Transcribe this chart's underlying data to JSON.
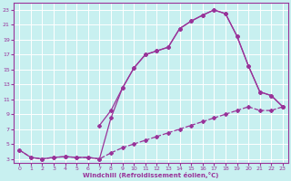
{
  "xlabel": "Windchill (Refroidissement éolien,°C)",
  "bg_color": "#c8f0f0",
  "line_color": "#993399",
  "grid_color": "#ffffff",
  "xlim": [
    -0.5,
    23.5
  ],
  "ylim": [
    2.5,
    24
  ],
  "xticks": [
    0,
    1,
    2,
    3,
    4,
    5,
    6,
    7,
    8,
    9,
    10,
    11,
    12,
    13,
    14,
    15,
    16,
    17,
    18,
    19,
    20,
    21,
    22,
    23
  ],
  "yticks": [
    3,
    5,
    7,
    9,
    11,
    13,
    15,
    17,
    19,
    21,
    23
  ],
  "line1_x": [
    0,
    1,
    2,
    3,
    4,
    5,
    6,
    7,
    8,
    9,
    10,
    11,
    12,
    13,
    14,
    15,
    16,
    17,
    18,
    19,
    20,
    21,
    22,
    23
  ],
  "line1_y": [
    4.2,
    3.2,
    3.0,
    3.2,
    3.3,
    3.2,
    3.2,
    3.0,
    8.5,
    12.5,
    15.2,
    17.0,
    17.5,
    18.0,
    20.5,
    21.5,
    22.3,
    23.0,
    22.5,
    19.5,
    15.5,
    12.0,
    11.5,
    10.0
  ],
  "line2_x": [
    0,
    1,
    2,
    3,
    4,
    5,
    6,
    7,
    8,
    9,
    10,
    11,
    12,
    13,
    14,
    15,
    16,
    17,
    18,
    19,
    20,
    21,
    22,
    23
  ],
  "line2_y": [
    4.2,
    3.2,
    3.0,
    3.2,
    3.3,
    3.2,
    3.2,
    3.0,
    3.8,
    4.5,
    5.0,
    5.5,
    6.0,
    6.5,
    7.0,
    7.5,
    8.0,
    8.5,
    9.0,
    9.5,
    10.0,
    9.5,
    9.5,
    10.0
  ],
  "line3_x": [
    7,
    8,
    9,
    10,
    11,
    12,
    13,
    14,
    15,
    16,
    17,
    18,
    19,
    20,
    21,
    22,
    23
  ],
  "line3_y": [
    7.5,
    9.5,
    12.5,
    15.2,
    17.0,
    17.5,
    18.0,
    20.5,
    21.5,
    22.3,
    23.0,
    22.5,
    19.5,
    15.5,
    12.0,
    11.5,
    10.0
  ]
}
